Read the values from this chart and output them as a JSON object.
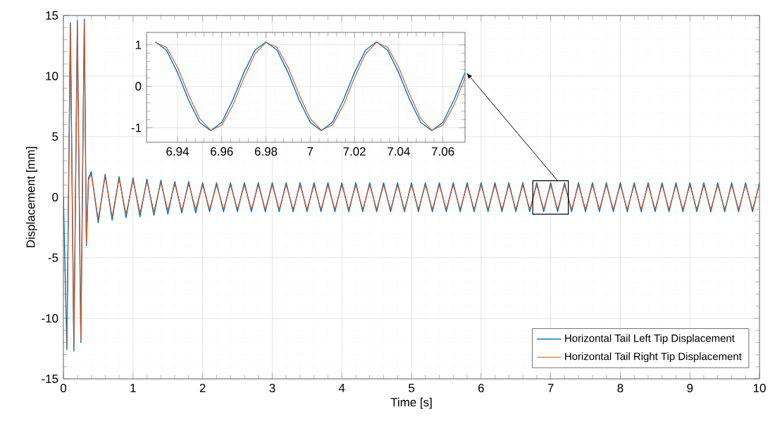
{
  "chart_data": [
    {
      "type": "line",
      "xlabel": "Time [s]",
      "ylabel": "Displacement [mm]",
      "xlim": [
        0,
        10
      ],
      "ylim": [
        -15,
        15
      ],
      "xticks": [
        0,
        1,
        2,
        3,
        4,
        5,
        6,
        7,
        8,
        9,
        10
      ],
      "yticks": [
        -15,
        -10,
        -5,
        0,
        5,
        10,
        15
      ],
      "grid": true,
      "legend": "bottom right",
      "x": [
        0,
        0.05,
        0.1,
        0.15,
        0.2,
        0.25,
        0.3,
        0.33,
        0.36,
        0.4,
        0.5,
        0.6,
        0.7,
        0.8,
        0.9,
        1.0,
        1.1,
        1.2,
        1.3,
        1.4,
        1.5,
        1.6,
        1.7,
        1.8,
        1.9,
        2.0,
        2.1,
        2.2,
        2.3,
        2.4,
        2.5,
        2.6,
        2.7,
        2.8,
        2.9,
        3.0,
        3.1,
        3.2,
        3.3,
        3.4,
        3.5,
        3.6,
        3.7,
        3.8,
        3.9,
        4.0,
        4.1,
        4.2,
        4.3,
        4.4,
        4.5,
        4.6,
        4.7,
        4.8,
        4.9,
        5.0,
        5.1,
        5.2,
        5.3,
        5.4,
        5.5,
        5.6,
        5.7,
        5.8,
        5.9,
        6.0,
        6.1,
        6.2,
        6.3,
        6.4,
        6.5,
        6.6,
        6.7,
        6.8,
        6.9,
        7.0,
        7.1,
        7.2,
        7.3,
        7.4,
        7.5,
        7.6,
        7.7,
        7.8,
        7.9,
        8.0,
        8.1,
        8.2,
        8.3,
        8.4,
        8.5,
        8.6,
        8.7,
        8.8,
        8.9,
        9.0,
        9.1,
        9.2,
        9.3,
        9.4,
        9.5,
        9.6,
        9.7,
        9.8,
        9.9,
        10.0
      ],
      "series": [
        {
          "name": "Horizontal Tail Left Tip Displacement",
          "color": "#0072bd",
          "values": [
            0,
            -12.6,
            14.4,
            -12.7,
            14.6,
            -12.0,
            14.7,
            -4.0,
            1.6,
            2.1,
            -2.1,
            1.9,
            -1.9,
            1.7,
            -1.7,
            1.6,
            -1.6,
            1.5,
            -1.5,
            1.4,
            -1.4,
            1.3,
            -1.3,
            1.3,
            -1.3,
            1.2,
            -1.2,
            1.2,
            -1.2,
            1.2,
            -1.2,
            1.2,
            -1.2,
            1.2,
            -1.2,
            1.2,
            -1.2,
            1.2,
            -1.2,
            1.2,
            -1.2,
            1.2,
            -1.2,
            1.2,
            -1.2,
            1.2,
            -1.2,
            1.2,
            -1.2,
            1.2,
            -1.2,
            1.2,
            -1.2,
            1.2,
            -1.2,
            1.2,
            -1.2,
            1.2,
            -1.2,
            1.2,
            -1.2,
            1.2,
            -1.2,
            1.2,
            -1.2,
            1.2,
            -1.2,
            1.2,
            -1.2,
            1.2,
            -1.2,
            1.2,
            -1.2,
            1.2,
            -1.2,
            1.2,
            -1.2,
            1.2,
            -1.2,
            1.2,
            -1.2,
            1.2,
            -1.2,
            1.2,
            -1.2,
            1.2,
            -1.2,
            1.2,
            -1.2,
            1.2,
            -1.2,
            1.2,
            -1.2,
            1.2,
            -1.2,
            1.2,
            -1.2,
            1.2,
            -1.2,
            1.2,
            -1.2,
            1.2,
            -1.2,
            1.2,
            -1.2,
            1.2
          ]
        },
        {
          "name": "Horizontal Tail Right Tip Displacement",
          "color": "#d95319",
          "values": [
            null,
            -12.3,
            14.2,
            -12.2,
            14.4,
            -11.8,
            14.5,
            -3.8,
            1.4,
            1.9,
            -1.8,
            1.7,
            -1.6,
            1.5,
            -1.4,
            1.4,
            -1.3,
            1.3,
            -1.2,
            1.2,
            -1.1,
            1.1,
            -1.1,
            1.1,
            -1.0,
            1.0,
            -1.0,
            1.0,
            -1.0,
            1.0,
            -1.0,
            1.0,
            -1.0,
            1.0,
            -1.0,
            1.0,
            -1.0,
            1.0,
            -1.0,
            1.0,
            -1.0,
            1.0,
            -1.0,
            1.0,
            -1.0,
            1.0,
            -1.0,
            1.0,
            -1.0,
            1.0,
            -1.0,
            1.0,
            -1.0,
            1.0,
            -1.0,
            1.0,
            -1.0,
            1.0,
            -1.0,
            1.0,
            -1.0,
            1.0,
            -1.0,
            1.0,
            -1.0,
            1.0,
            -1.0,
            1.0,
            -1.0,
            1.0,
            -1.0,
            1.0,
            -1.0,
            1.0,
            -1.0,
            1.0,
            -1.0,
            1.0,
            -1.0,
            1.0,
            -1.0,
            1.0,
            -1.0,
            1.0,
            -1.0,
            1.0,
            -1.0,
            1.0,
            -1.0,
            1.0,
            -1.0,
            1.0,
            -1.0,
            1.0,
            -1.0,
            1.0,
            -1.0,
            1.0,
            -1.0,
            1.0,
            -1.0,
            1.0,
            -1.0,
            1.0,
            -1.0,
            1.0
          ]
        }
      ]
    },
    {
      "type": "line",
      "xlim": [
        6.926,
        7.07
      ],
      "ylim": [
        -1.35,
        1.3
      ],
      "xticks": [
        6.94,
        6.96,
        6.98,
        7,
        7.02,
        7.04,
        7.06
      ],
      "yticks": [
        -1,
        0,
        1
      ],
      "grid": true,
      "x": [
        6.93,
        6.935,
        6.94,
        6.945,
        6.95,
        6.955,
        6.96,
        6.965,
        6.97,
        6.975,
        6.98,
        6.985,
        6.99,
        6.995,
        7.0,
        7.005,
        7.01,
        7.015,
        7.02,
        7.025,
        7.03,
        7.035,
        7.04,
        7.045,
        7.05,
        7.055,
        7.06,
        7.065,
        7.07
      ],
      "series": [
        {
          "color": "#0072bd",
          "values": [
            1.07,
            0.87,
            0.33,
            -0.33,
            -0.87,
            -1.07,
            -0.87,
            -0.33,
            0.33,
            0.87,
            1.07,
            0.87,
            0.33,
            -0.33,
            -0.87,
            -1.07,
            -0.87,
            -0.33,
            0.33,
            0.87,
            1.07,
            0.87,
            0.33,
            -0.33,
            -0.87,
            -1.07,
            -0.87,
            -0.33,
            0.33
          ]
        },
        {
          "color": "#d95319",
          "values": [
            1.06,
            0.94,
            0.46,
            -0.2,
            -0.78,
            -1.06,
            -0.94,
            -0.46,
            0.2,
            0.78,
            1.06,
            0.94,
            0.46,
            -0.2,
            -0.78,
            -1.06,
            -0.94,
            -0.46,
            0.2,
            0.78,
            1.06,
            0.94,
            0.46,
            -0.2,
            -0.78,
            -1.06,
            -0.94,
            -0.46,
            0.2
          ]
        }
      ]
    }
  ]
}
